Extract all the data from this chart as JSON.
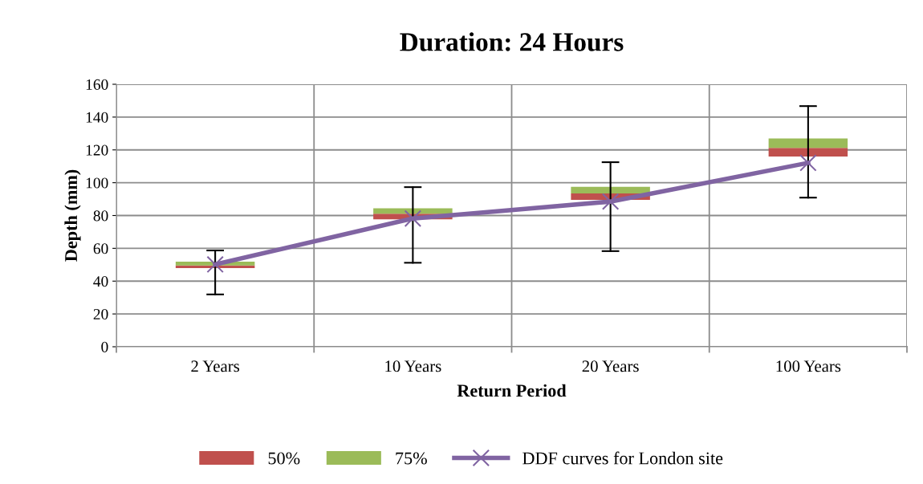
{
  "chart_data": {
    "type": "bar",
    "title": "Duration: 24 Hours",
    "xlabel": "Return Period",
    "ylabel": "Depth (mm)",
    "categories": [
      "2 Years",
      "10 Years",
      "20 Years",
      "100 Years"
    ],
    "series": [
      {
        "name": "50%",
        "color": "#c0504d",
        "base": [
          48.0,
          77.7,
          89.5,
          116.0
        ],
        "values": [
          1.6,
          3.4,
          3.9,
          5.2
        ]
      },
      {
        "name": "75%",
        "color": "#9bbb59",
        "base": [
          49.6,
          81.1,
          93.4,
          121.2
        ],
        "values": [
          2.3,
          3.3,
          4.1,
          5.8
        ]
      },
      {
        "name": "DDF curves for London site",
        "type": "line",
        "color": "#8064a2",
        "marker": "cross",
        "values": [
          50.2,
          78.2,
          88.5,
          112.1
        ],
        "errors": [
          [
            31.9,
            58.7
          ],
          [
            51.2,
            97.3
          ],
          [
            58.3,
            112.5
          ],
          [
            90.9,
            146.7
          ]
        ]
      }
    ],
    "ylim": [
      0,
      160
    ],
    "yticks": [
      0,
      20,
      40,
      60,
      80,
      100,
      120,
      140,
      160
    ],
    "grid": true,
    "legend": "bottom"
  }
}
